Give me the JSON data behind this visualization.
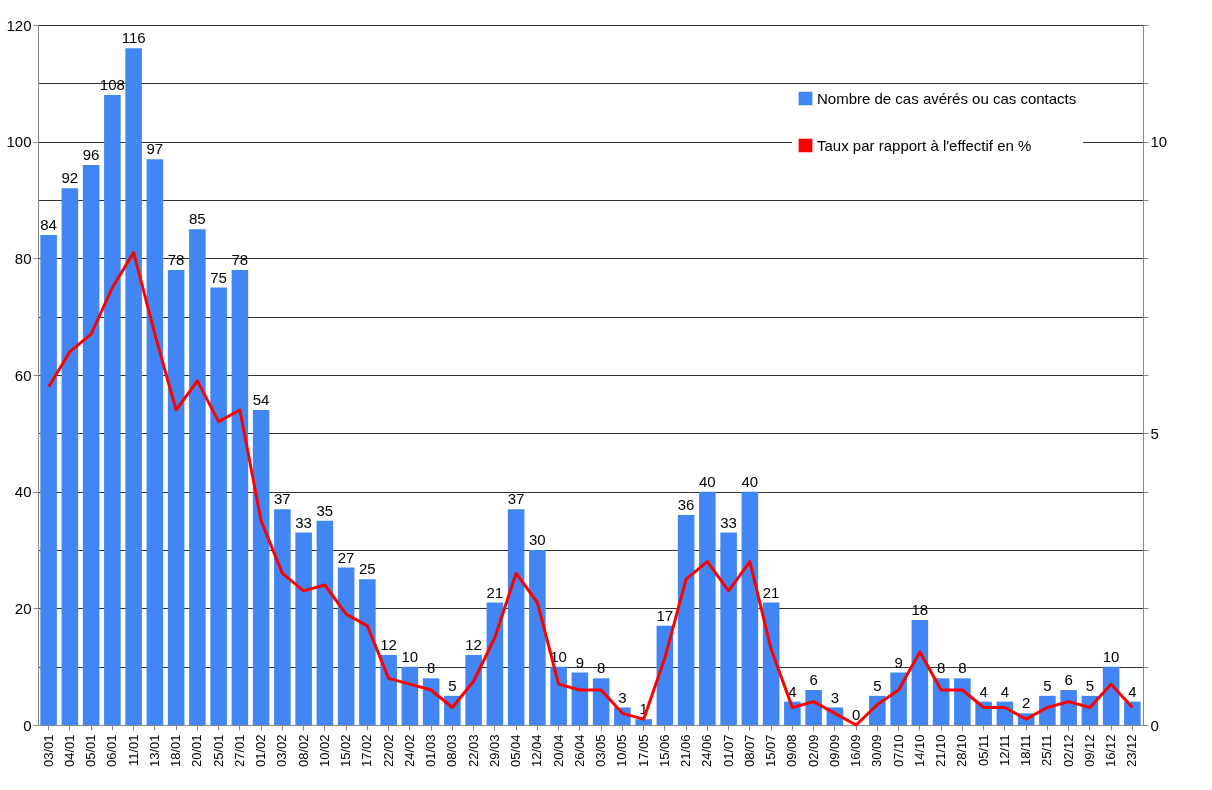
{
  "chart_data": {
    "type": "bar",
    "categories": [
      "03/01",
      "04/01",
      "05/01",
      "06/01",
      "11/01",
      "13/01",
      "18/01",
      "20/01",
      "25/01",
      "27/01",
      "01/02",
      "03/02",
      "08/02",
      "10/02",
      "15/02",
      "17/02",
      "22/02",
      "24/02",
      "01/03",
      "08/03",
      "22/03",
      "29/03",
      "05/04",
      "12/04",
      "20/04",
      "26/04",
      "03/05",
      "10/05",
      "17/05",
      "15/06",
      "21/06",
      "24/06",
      "01/07",
      "08/07",
      "15/07",
      "09/08",
      "02/09",
      "09/09",
      "16/09",
      "30/09",
      "07/10",
      "14/10",
      "21/10",
      "28/10",
      "05/11",
      "12/11",
      "18/11",
      "25/11",
      "02/12",
      "09/12",
      "16/12",
      "23/12"
    ],
    "series": [
      {
        "name": "Nombre de cas avérés ou cas contacts",
        "color": "#4285f4",
        "values": [
          84,
          92,
          96,
          108,
          116,
          97,
          78,
          85,
          75,
          78,
          54,
          37,
          33,
          35,
          27,
          25,
          12,
          10,
          8,
          5,
          12,
          21,
          37,
          30,
          10,
          9,
          8,
          3,
          1,
          17,
          36,
          40,
          33,
          40,
          21,
          4,
          6,
          3,
          0,
          5,
          9,
          18,
          8,
          8,
          4,
          4,
          2,
          5,
          6,
          5,
          10,
          4
        ],
        "value_labels": [
          "84",
          "92",
          "96",
          "108",
          "116",
          "97",
          "78",
          "85",
          "75",
          "78",
          "54",
          "37",
          "33",
          "35",
          "27",
          "25",
          "12",
          "10",
          "8",
          "5",
          "12",
          "21",
          "37",
          "30",
          "10",
          "9",
          "8",
          "3",
          "1",
          "17",
          "36",
          "40",
          "33",
          "40",
          "21",
          "4",
          "6",
          "3",
          "0",
          "5",
          "9",
          "18",
          "8",
          "8",
          "4",
          "4",
          "2",
          "5",
          "6",
          "5",
          "10",
          "4"
        ]
      },
      {
        "name": "Taux par rapport à l'effectif en %",
        "type": "line",
        "axis": "y2",
        "color": "#ff0000",
        "values": [
          5.8,
          6.4,
          6.7,
          7.5,
          8.1,
          6.7,
          5.4,
          5.9,
          5.2,
          5.4,
          3.5,
          2.6,
          2.3,
          2.4,
          1.9,
          1.7,
          0.8,
          0.7,
          0.6,
          0.3,
          0.75,
          1.5,
          2.6,
          2.1,
          0.7,
          0.6,
          0.6,
          0.2,
          0.1,
          1.15,
          2.5,
          2.8,
          2.3,
          2.8,
          1.3,
          0.3,
          0.4,
          0.2,
          0,
          0.35,
          0.6,
          1.25,
          0.6,
          0.6,
          0.3,
          0.3,
          0.1,
          0.3,
          0.4,
          0.3,
          0.7,
          0.3
        ]
      }
    ],
    "ylim": [
      0,
      120
    ],
    "yticks": [
      0,
      20,
      40,
      60,
      80,
      100,
      120
    ],
    "y2lim": [
      0,
      12
    ],
    "y2ticks": [
      0,
      {
        "value": 1,
        "label": null
      },
      {
        "value": 2,
        "label": null
      },
      {
        "value": 3,
        "label": null
      },
      {
        "value": 4,
        "label": null
      },
      5,
      {
        "value": 6,
        "label": null
      },
      {
        "value": 7,
        "label": null
      },
      {
        "value": 8,
        "label": null
      },
      {
        "value": 9,
        "label": null
      },
      10,
      {
        "value": 11,
        "label": null
      },
      {
        "value": 12,
        "label": null
      }
    ],
    "grid": "y2",
    "legend": "top right",
    "line_style": "solid",
    "marker": "none"
  }
}
